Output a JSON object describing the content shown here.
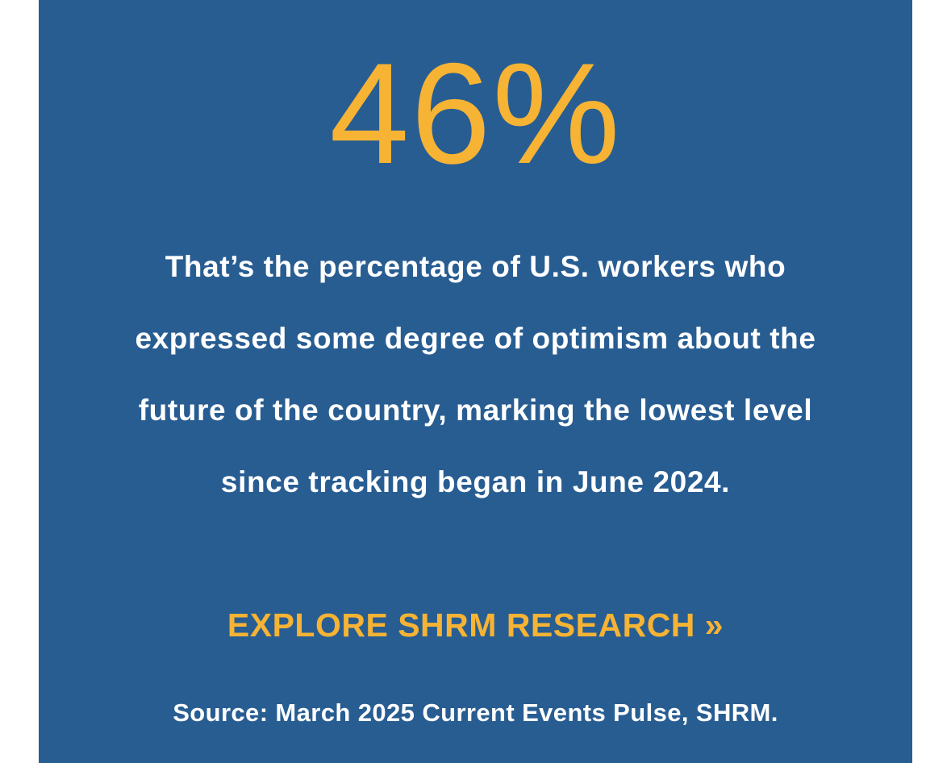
{
  "stat": {
    "value": "46%"
  },
  "description": {
    "lines": [
      "That’s the percentage of U.S. workers who",
      "expressed some degree of optimism about the",
      "future of the country, marking the lowest level",
      "since tracking began in June 2024."
    ]
  },
  "cta": {
    "label": "EXPLORE SHRM RESEARCH »"
  },
  "source": {
    "text": "Source: March 2025 Current Events Pulse, SHRM."
  },
  "colors": {
    "background": "#285d92",
    "accent": "#f6b334",
    "text": "#ffffff"
  }
}
